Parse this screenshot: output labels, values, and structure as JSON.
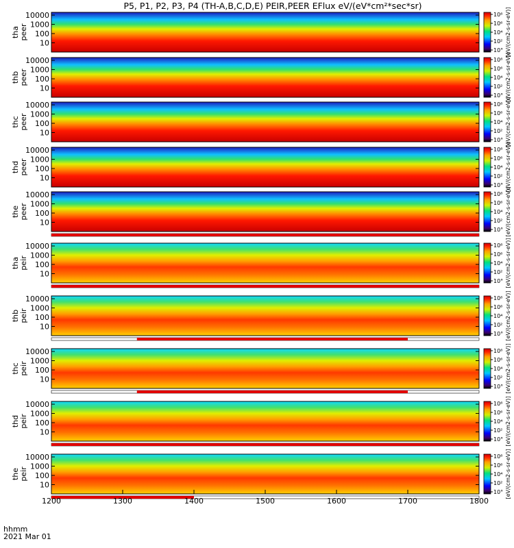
{
  "title": "P5, P1, P2, P3, P4 (TH-A,B,C,D,E) PEIR,PEER EFlux eV/(eV*cm²*sec*sr)",
  "footer": {
    "time_label": "hhmm",
    "date_label": "2021 Mar 01"
  },
  "colorbar_label": "[eV/(cm2-s-sr-eV)]",
  "chart_data": {
    "type": "heatmap",
    "x_axis": {
      "range": [
        1200,
        1800
      ],
      "ticks": [
        "1200",
        "1300",
        "1400",
        "1500",
        "1600",
        "1700",
        "1800"
      ]
    },
    "y_scale": "log",
    "y_ticks": [
      "10",
      "100",
      "1000",
      "10000"
    ],
    "colorbar_ticks": [
      "10°",
      "10²",
      "10⁴",
      "10⁶",
      "10⁸"
    ],
    "panels": [
      {
        "label_top": "tha",
        "label_bottom": "peer",
        "flag_bar": null
      },
      {
        "label_top": "thb",
        "label_bottom": "peer",
        "flag_bar": null
      },
      {
        "label_top": "thc",
        "label_bottom": "peer",
        "flag_bar": null
      },
      {
        "label_top": "thd",
        "label_bottom": "peer",
        "flag_bar": null
      },
      {
        "label_top": "the",
        "label_bottom": "peer",
        "flag_bar": [
          1200,
          1800
        ]
      },
      {
        "label_top": "tha",
        "label_bottom": "peir",
        "flag_bar": [
          1200,
          1800
        ]
      },
      {
        "label_top": "thb",
        "label_bottom": "peir",
        "flag_bar": [
          1320,
          1700
        ]
      },
      {
        "label_top": "thc",
        "label_bottom": "peir",
        "flag_bar": [
          1320,
          1700
        ]
      },
      {
        "label_top": "thd",
        "label_bottom": "peir",
        "flag_bar": [
          1200,
          1800
        ]
      },
      {
        "label_top": "the",
        "label_bottom": "peir",
        "flag_bar": [
          1200,
          1400
        ]
      }
    ]
  }
}
